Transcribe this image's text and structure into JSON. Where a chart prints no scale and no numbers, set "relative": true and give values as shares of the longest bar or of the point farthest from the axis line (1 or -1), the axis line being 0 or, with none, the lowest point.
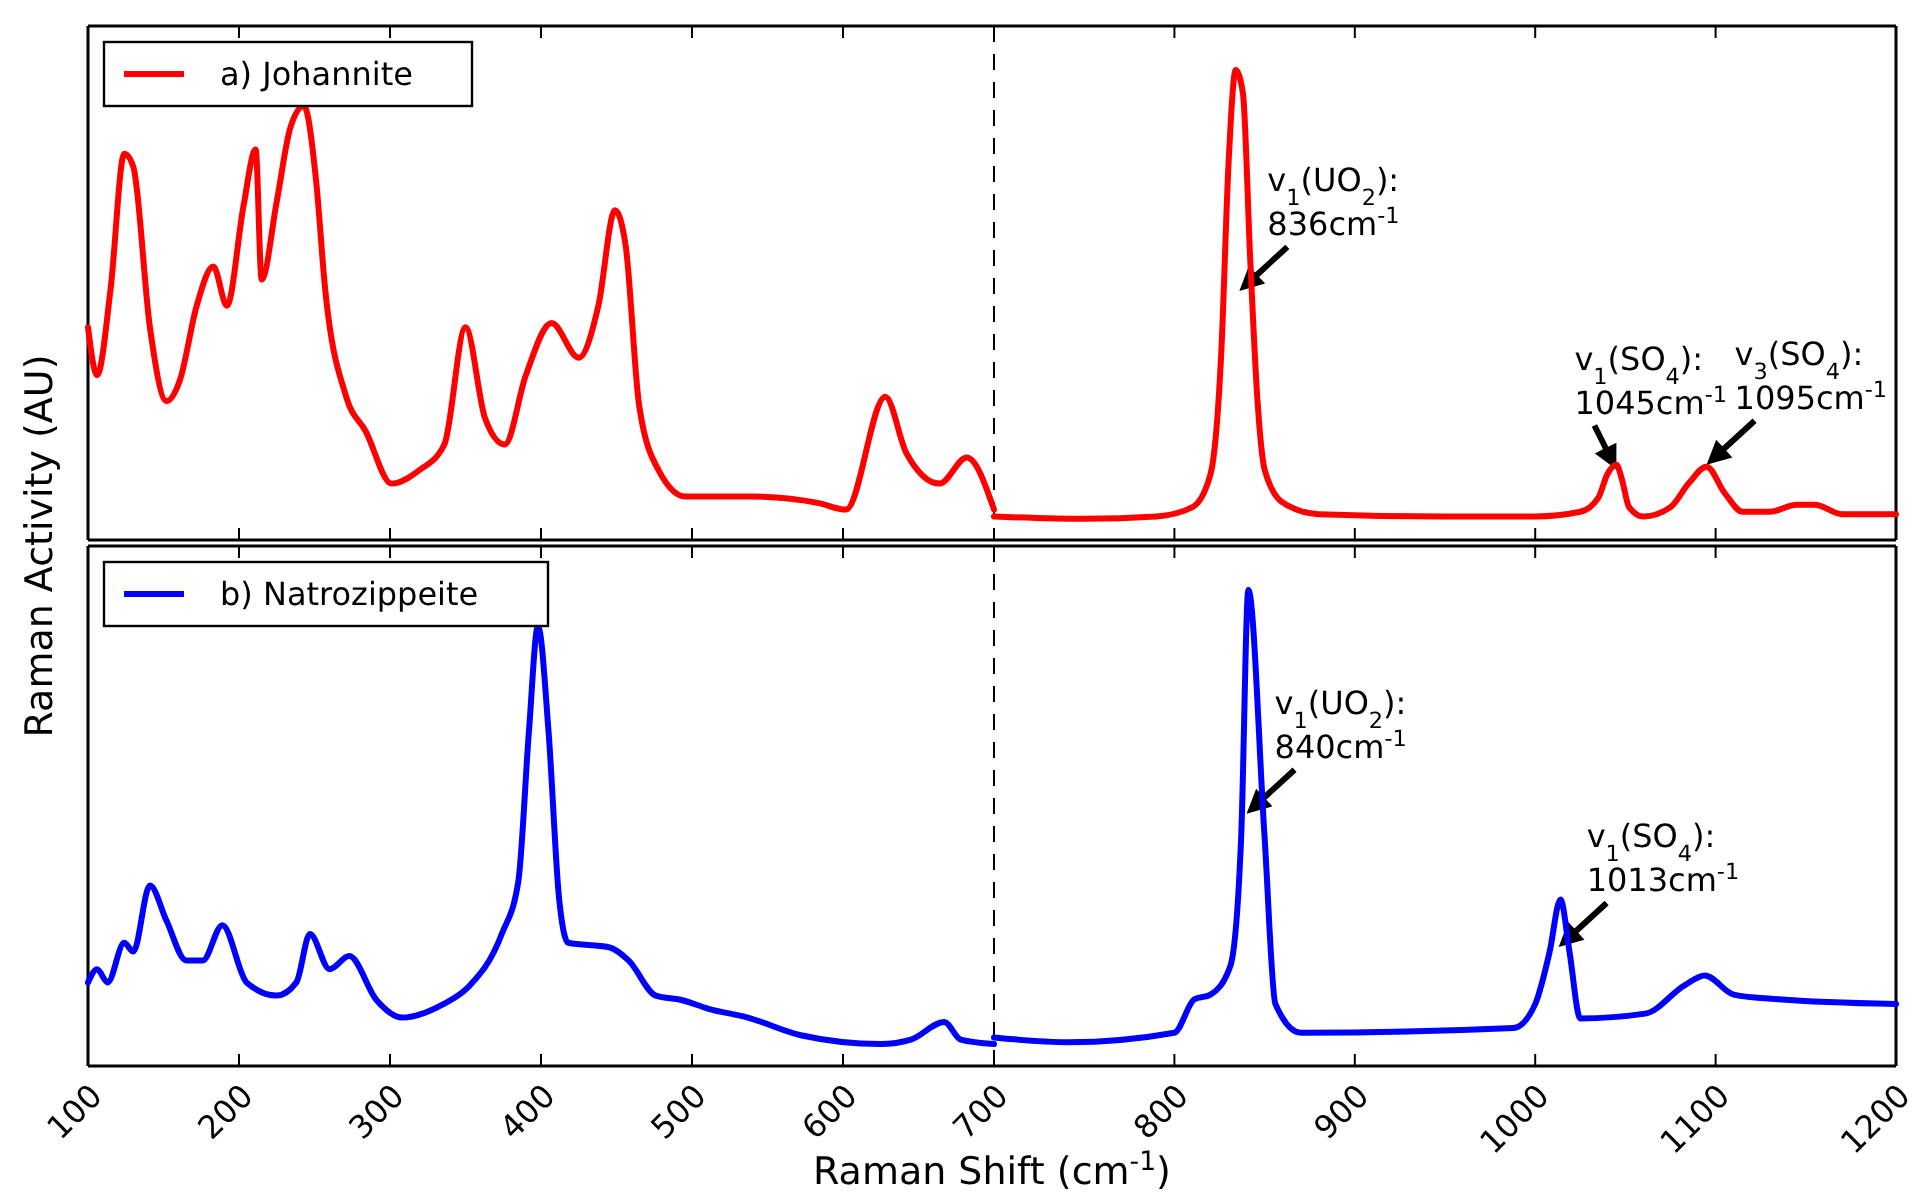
{
  "chart_data": [
    {
      "type": "line",
      "ylabel": "Raman Activity (AU)",
      "relative": true,
      "xlim": [
        100,
        700
      ],
      "xticks": [
        100,
        200,
        300,
        400,
        500,
        600,
        700
      ],
      "tick_labels": false,
      "legend": "top left",
      "x": [
        100,
        106,
        115,
        124,
        130,
        141,
        152,
        161,
        172,
        183,
        192,
        203,
        211,
        215,
        225,
        234,
        243,
        251,
        257,
        271,
        284,
        301,
        319,
        336,
        350,
        363,
        376,
        390,
        407,
        425,
        438,
        449,
        456,
        465,
        478,
        496,
        540,
        584,
        602,
        628,
        642,
        664,
        682,
        700
      ],
      "series": [
        {
          "name": "a) Johannite",
          "color": "#ff0000",
          "values": [
            0.49,
            0.38,
            0.58,
            0.89,
            0.86,
            0.49,
            0.32,
            0.37,
            0.54,
            0.63,
            0.54,
            0.77,
            0.9,
            0.6,
            0.78,
            0.95,
            1,
            0.83,
            0.58,
            0.33,
            0.25,
            0.13,
            0.16,
            0.22,
            0.49,
            0.28,
            0.22,
            0.38,
            0.5,
            0.42,
            0.54,
            0.76,
            0.68,
            0.31,
            0.16,
            0.1,
            0.1,
            0.085,
            0.07,
            0.33,
            0.2,
            0.13,
            0.19,
            0.07
          ]
        }
      ],
      "ref_lines": [
        {
          "axis": "x",
          "value": 700,
          "line_style": "dashed",
          "color": "#000000"
        }
      ]
    },
    {
      "type": "line",
      "relative": true,
      "xlim": [
        700,
        1200
      ],
      "xticks": [
        {
          "value": 700,
          "label": null
        },
        800,
        900,
        1000,
        1100,
        1200
      ],
      "tick_labels": false,
      "x": [
        700,
        750,
        790,
        810,
        820,
        826,
        830,
        834,
        838,
        842,
        846,
        850,
        860,
        880,
        950,
        1000,
        1025,
        1035,
        1040,
        1045,
        1048,
        1052,
        1060,
        1075,
        1085,
        1095,
        1105,
        1115,
        1130,
        1145,
        1155,
        1170,
        1200
      ],
      "series": [
        {
          "color": "#ff0000",
          "values": [
            0.05,
            0.045,
            0.05,
            0.07,
            0.14,
            0.4,
            0.8,
            1,
            0.95,
            0.6,
            0.3,
            0.15,
            0.08,
            0.055,
            0.05,
            0.05,
            0.06,
            0.09,
            0.14,
            0.16,
            0.13,
            0.07,
            0.05,
            0.07,
            0.12,
            0.156,
            0.1,
            0.06,
            0.06,
            0.075,
            0.075,
            0.055,
            0.055
          ]
        }
      ],
      "annotations": [
        {
          "text": "v$_{1}$(UO$_{2}$):\n836cm$^{-1}$",
          "x": 836,
          "y": 0.53
        },
        {
          "text": "v$_{1}$(SO$_{4}$):\n1045cm$^{-1}$",
          "x": 1045,
          "y": 0.15
        },
        {
          "text": "v$_{3}$(SO$_{4}$):\n1095cm$^{-1}$",
          "x": 1095,
          "y": 0.16
        }
      ]
    },
    {
      "type": "line",
      "xlabel": "Raman Shift (cm$^{-1}$)",
      "relative": true,
      "xlim": [
        100,
        700
      ],
      "xticks": [
        100,
        200,
        300,
        400,
        500,
        600,
        700
      ],
      "tick_labels": "x",
      "legend": "top left",
      "x": [
        100,
        106,
        113,
        124,
        130,
        141,
        152,
        165,
        176,
        189,
        205,
        225,
        238,
        247,
        260,
        273,
        291,
        308,
        335,
        352,
        374,
        385,
        392,
        398,
        405,
        412,
        418,
        445,
        458,
        476,
        493,
        511,
        537,
        572,
        625,
        645,
        667,
        678,
        700
      ],
      "series": [
        {
          "name": "b) Natrozippeite",
          "color": "#0000ff",
          "values": [
            0.19,
            0.22,
            0.19,
            0.28,
            0.26,
            0.41,
            0.33,
            0.24,
            0.24,
            0.32,
            0.19,
            0.16,
            0.19,
            0.3,
            0.22,
            0.25,
            0.15,
            0.11,
            0.14,
            0.18,
            0.3,
            0.42,
            0.76,
            1,
            0.76,
            0.38,
            0.28,
            0.27,
            0.24,
            0.16,
            0.15,
            0.13,
            0.11,
            0.07,
            0.05,
            0.06,
            0.1,
            0.06,
            0.05
          ]
        }
      ],
      "ref_lines": [
        {
          "axis": "x",
          "value": 700,
          "line_style": "dashed",
          "color": "#000000"
        }
      ]
    },
    {
      "type": "line",
      "relative": true,
      "xlim": [
        700,
        1200
      ],
      "xticks": [
        {
          "value": 700,
          "label": null
        },
        800,
        900,
        1000,
        1100,
        1200
      ],
      "tick_labels": "x",
      "x": [
        700,
        741,
        800,
        811,
        820,
        831,
        837,
        841,
        850,
        856,
        870,
        988,
        1000,
        1008,
        1014,
        1019,
        1025,
        1061,
        1083,
        1094,
        1110,
        1135,
        1200
      ],
      "series": [
        {
          "color": "#0000ff",
          "values": [
            0.06,
            0.05,
            0.07,
            0.14,
            0.15,
            0.21,
            0.48,
            1,
            0.48,
            0.13,
            0.07,
            0.08,
            0.13,
            0.24,
            0.35,
            0.24,
            0.1,
            0.11,
            0.17,
            0.19,
            0.15,
            0.14,
            0.13
          ]
        }
      ],
      "annotations": [
        {
          "text": "v$_{1}$(UO$_{2}$):\n840cm$^{-1}$",
          "x": 840,
          "y": 0.53
        },
        {
          "text": "v$_{1}$(SO$_{4}$):\n1013cm$^{-1}$",
          "x": 1013,
          "y": 0.25
        }
      ]
    }
  ]
}
